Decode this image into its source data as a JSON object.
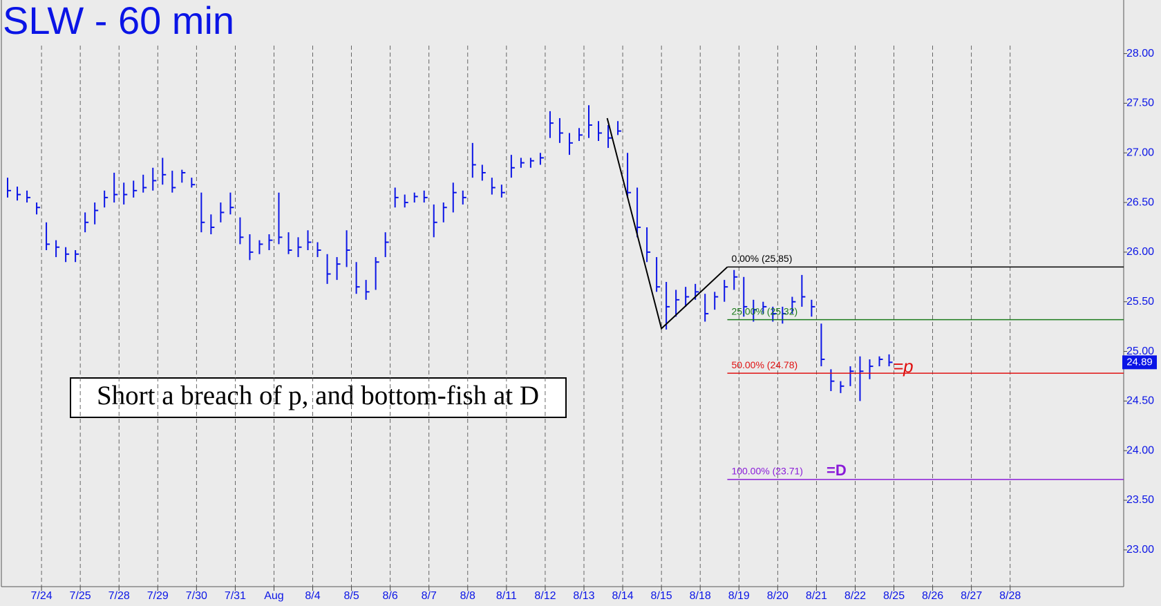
{
  "chart_data": {
    "type": "ohlc",
    "title": "SLW - 60 min",
    "color": "#0a14e6",
    "xlim": [
      0,
      28.93
    ],
    "xticks": [
      {
        "value": 1,
        "label": "7/24"
      },
      {
        "value": 2,
        "label": "7/25"
      },
      {
        "value": 3,
        "label": "7/28"
      },
      {
        "value": 4,
        "label": "7/29"
      },
      {
        "value": 5,
        "label": "7/30"
      },
      {
        "value": 6,
        "label": "7/31"
      },
      {
        "value": 7,
        "label": "Aug"
      },
      {
        "value": 8,
        "label": "8/4"
      },
      {
        "value": 9,
        "label": "8/5"
      },
      {
        "value": 10,
        "label": "8/6"
      },
      {
        "value": 11,
        "label": "8/7"
      },
      {
        "value": 12,
        "label": "8/8"
      },
      {
        "value": 13,
        "label": "8/11"
      },
      {
        "value": 14,
        "label": "8/12"
      },
      {
        "value": 15,
        "label": "8/13"
      },
      {
        "value": 16,
        "label": "8/14"
      },
      {
        "value": 17,
        "label": "8/15"
      },
      {
        "value": 18,
        "label": "8/18"
      },
      {
        "value": 19,
        "label": "8/19"
      },
      {
        "value": 20,
        "label": "8/20"
      },
      {
        "value": 21,
        "label": "8/21"
      },
      {
        "value": 22,
        "label": "8/22"
      },
      {
        "value": 23,
        "label": "8/25"
      },
      {
        "value": 24,
        "label": "8/26"
      },
      {
        "value": 25,
        "label": "8/27"
      },
      {
        "value": 26,
        "label": "8/28"
      }
    ],
    "ylim": [
      22.63,
      28.54
    ],
    "yticks": [
      {
        "value": 23,
        "label": "23.00"
      },
      {
        "value": 23.5,
        "label": "23.50"
      },
      {
        "value": 24,
        "label": "24.00"
      },
      {
        "value": 24.5,
        "label": "24.50"
      },
      {
        "value": 25,
        "label": "25.00"
      },
      {
        "value": 25.5,
        "label": "25.50"
      },
      {
        "value": 26,
        "label": "26.00"
      },
      {
        "value": 26.5,
        "label": "26.50"
      },
      {
        "value": 27,
        "label": "27.00"
      },
      {
        "value": 27.5,
        "label": "27.50"
      },
      {
        "value": 28,
        "label": "28.00"
      }
    ],
    "x": [
      0.125,
      0.375,
      0.625,
      0.875,
      1.125,
      1.375,
      1.625,
      1.875,
      2.125,
      2.375,
      2.625,
      2.875,
      3.125,
      3.375,
      3.625,
      3.875,
      4.125,
      4.375,
      4.625,
      4.875,
      5.125,
      5.375,
      5.625,
      5.875,
      6.125,
      6.375,
      6.625,
      6.875,
      7.125,
      7.375,
      7.625,
      7.875,
      8.125,
      8.375,
      8.625,
      8.875,
      9.125,
      9.375,
      9.625,
      9.875,
      10.125,
      10.375,
      10.625,
      10.875,
      11.125,
      11.375,
      11.625,
      11.875,
      12.125,
      12.375,
      12.625,
      12.875,
      13.125,
      13.375,
      13.625,
      13.875,
      14.125,
      14.375,
      14.625,
      14.875,
      15.125,
      15.375,
      15.625,
      15.875,
      16.125,
      16.375,
      16.625,
      16.875,
      17.125,
      17.375,
      17.625,
      17.875,
      18.125,
      18.375,
      18.625,
      18.875,
      19.125,
      19.375,
      19.625,
      19.875,
      20.125,
      20.375,
      20.625,
      20.875,
      21.125,
      21.375,
      21.625,
      21.875,
      22.125,
      22.375,
      22.625,
      22.875
    ],
    "high": [
      26.75,
      26.66,
      26.62,
      26.5,
      26.3,
      26.12,
      26.05,
      26.02,
      26.4,
      26.5,
      26.62,
      26.8,
      26.7,
      26.72,
      26.78,
      26.85,
      26.95,
      26.82,
      26.83,
      26.75,
      26.6,
      26.38,
      26.5,
      26.6,
      26.35,
      26.18,
      26.12,
      26.18,
      26.6,
      26.2,
      26.15,
      26.22,
      26.1,
      25.98,
      25.95,
      26.22,
      25.9,
      25.72,
      25.95,
      26.2,
      26.65,
      26.58,
      26.6,
      26.62,
      26.48,
      26.5,
      26.7,
      26.62,
      27.1,
      26.88,
      26.75,
      26.68,
      26.98,
      26.95,
      26.95,
      27.0,
      27.42,
      27.35,
      27.2,
      27.25,
      27.48,
      27.32,
      27.28,
      27.32,
      27.0,
      26.65,
      26.25,
      25.95,
      25.7,
      25.62,
      25.65,
      25.68,
      25.58,
      25.6,
      25.72,
      25.82,
      25.75,
      25.52,
      25.5,
      25.45,
      25.45,
      25.55,
      25.77,
      25.52,
      25.28,
      24.82,
      24.7,
      24.85,
      24.95,
      24.92,
      24.95,
      24.97
    ],
    "low": [
      26.55,
      26.52,
      26.5,
      26.38,
      26.02,
      25.95,
      25.9,
      25.9,
      26.2,
      26.28,
      26.45,
      26.5,
      26.48,
      26.55,
      26.6,
      26.62,
      26.68,
      26.6,
      26.7,
      26.65,
      26.2,
      26.18,
      26.3,
      26.38,
      26.08,
      25.92,
      25.98,
      26.02,
      26.08,
      25.98,
      25.95,
      26.02,
      25.95,
      25.68,
      25.72,
      25.85,
      25.58,
      25.52,
      25.62,
      25.95,
      26.45,
      26.45,
      26.5,
      26.5,
      26.15,
      26.3,
      26.4,
      26.48,
      26.75,
      26.72,
      26.58,
      26.55,
      26.75,
      26.85,
      26.85,
      26.88,
      27.15,
      27.1,
      26.98,
      27.12,
      27.15,
      27.12,
      27.05,
      27.18,
      26.55,
      26.15,
      25.9,
      25.6,
      25.22,
      25.35,
      25.45,
      25.52,
      25.3,
      25.42,
      25.5,
      25.62,
      25.35,
      25.3,
      25.38,
      25.3,
      25.28,
      25.38,
      25.45,
      25.35,
      24.85,
      24.6,
      24.58,
      24.65,
      24.5,
      24.72,
      24.85,
      24.85
    ],
    "close": [
      26.62,
      26.58,
      26.55,
      26.45,
      26.08,
      26.05,
      25.98,
      25.98,
      26.3,
      26.42,
      26.55,
      26.58,
      26.58,
      26.62,
      26.65,
      26.72,
      26.78,
      26.65,
      26.8,
      26.68,
      26.3,
      26.25,
      26.4,
      26.45,
      26.15,
      26.0,
      26.08,
      26.12,
      26.15,
      26.02,
      26.05,
      26.1,
      26.02,
      25.78,
      25.88,
      26.02,
      25.65,
      25.6,
      25.9,
      26.1,
      26.55,
      26.5,
      26.56,
      26.55,
      26.3,
      26.45,
      26.6,
      26.55,
      26.88,
      26.8,
      26.65,
      26.6,
      26.85,
      26.9,
      26.92,
      26.95,
      27.3,
      27.2,
      27.1,
      27.18,
      27.28,
      27.2,
      27.15,
      27.22,
      26.6,
      26.25,
      26.0,
      25.65,
      25.45,
      25.52,
      25.55,
      25.6,
      25.38,
      25.55,
      25.65,
      25.75,
      25.45,
      25.42,
      25.45,
      25.38,
      25.38,
      25.5,
      25.55,
      25.45,
      24.92,
      24.7,
      24.65,
      24.8,
      24.8,
      24.85,
      24.92,
      24.89
    ],
    "last_price": 24.89,
    "pattern": {
      "x": [
        15.6,
        17.0,
        18.7
      ],
      "y": [
        27.35,
        25.23,
        25.85
      ]
    },
    "levels": [
      {
        "label": "0.00% (25.85)",
        "value": 25.85,
        "color": "#000000"
      },
      {
        "label": "25.00% (25.32)",
        "value": 25.32,
        "color": "#1a7a1a"
      },
      {
        "label": "50.00% (24.78)",
        "value": 24.78,
        "color": "#e01010"
      },
      {
        "label": "100.00% (23.71)",
        "value": 23.71,
        "color": "#8a1ad8"
      }
    ],
    "notes": [
      "=p",
      "=D"
    ],
    "annotation": "Short a breach of p, and bottom-fish at D"
  }
}
